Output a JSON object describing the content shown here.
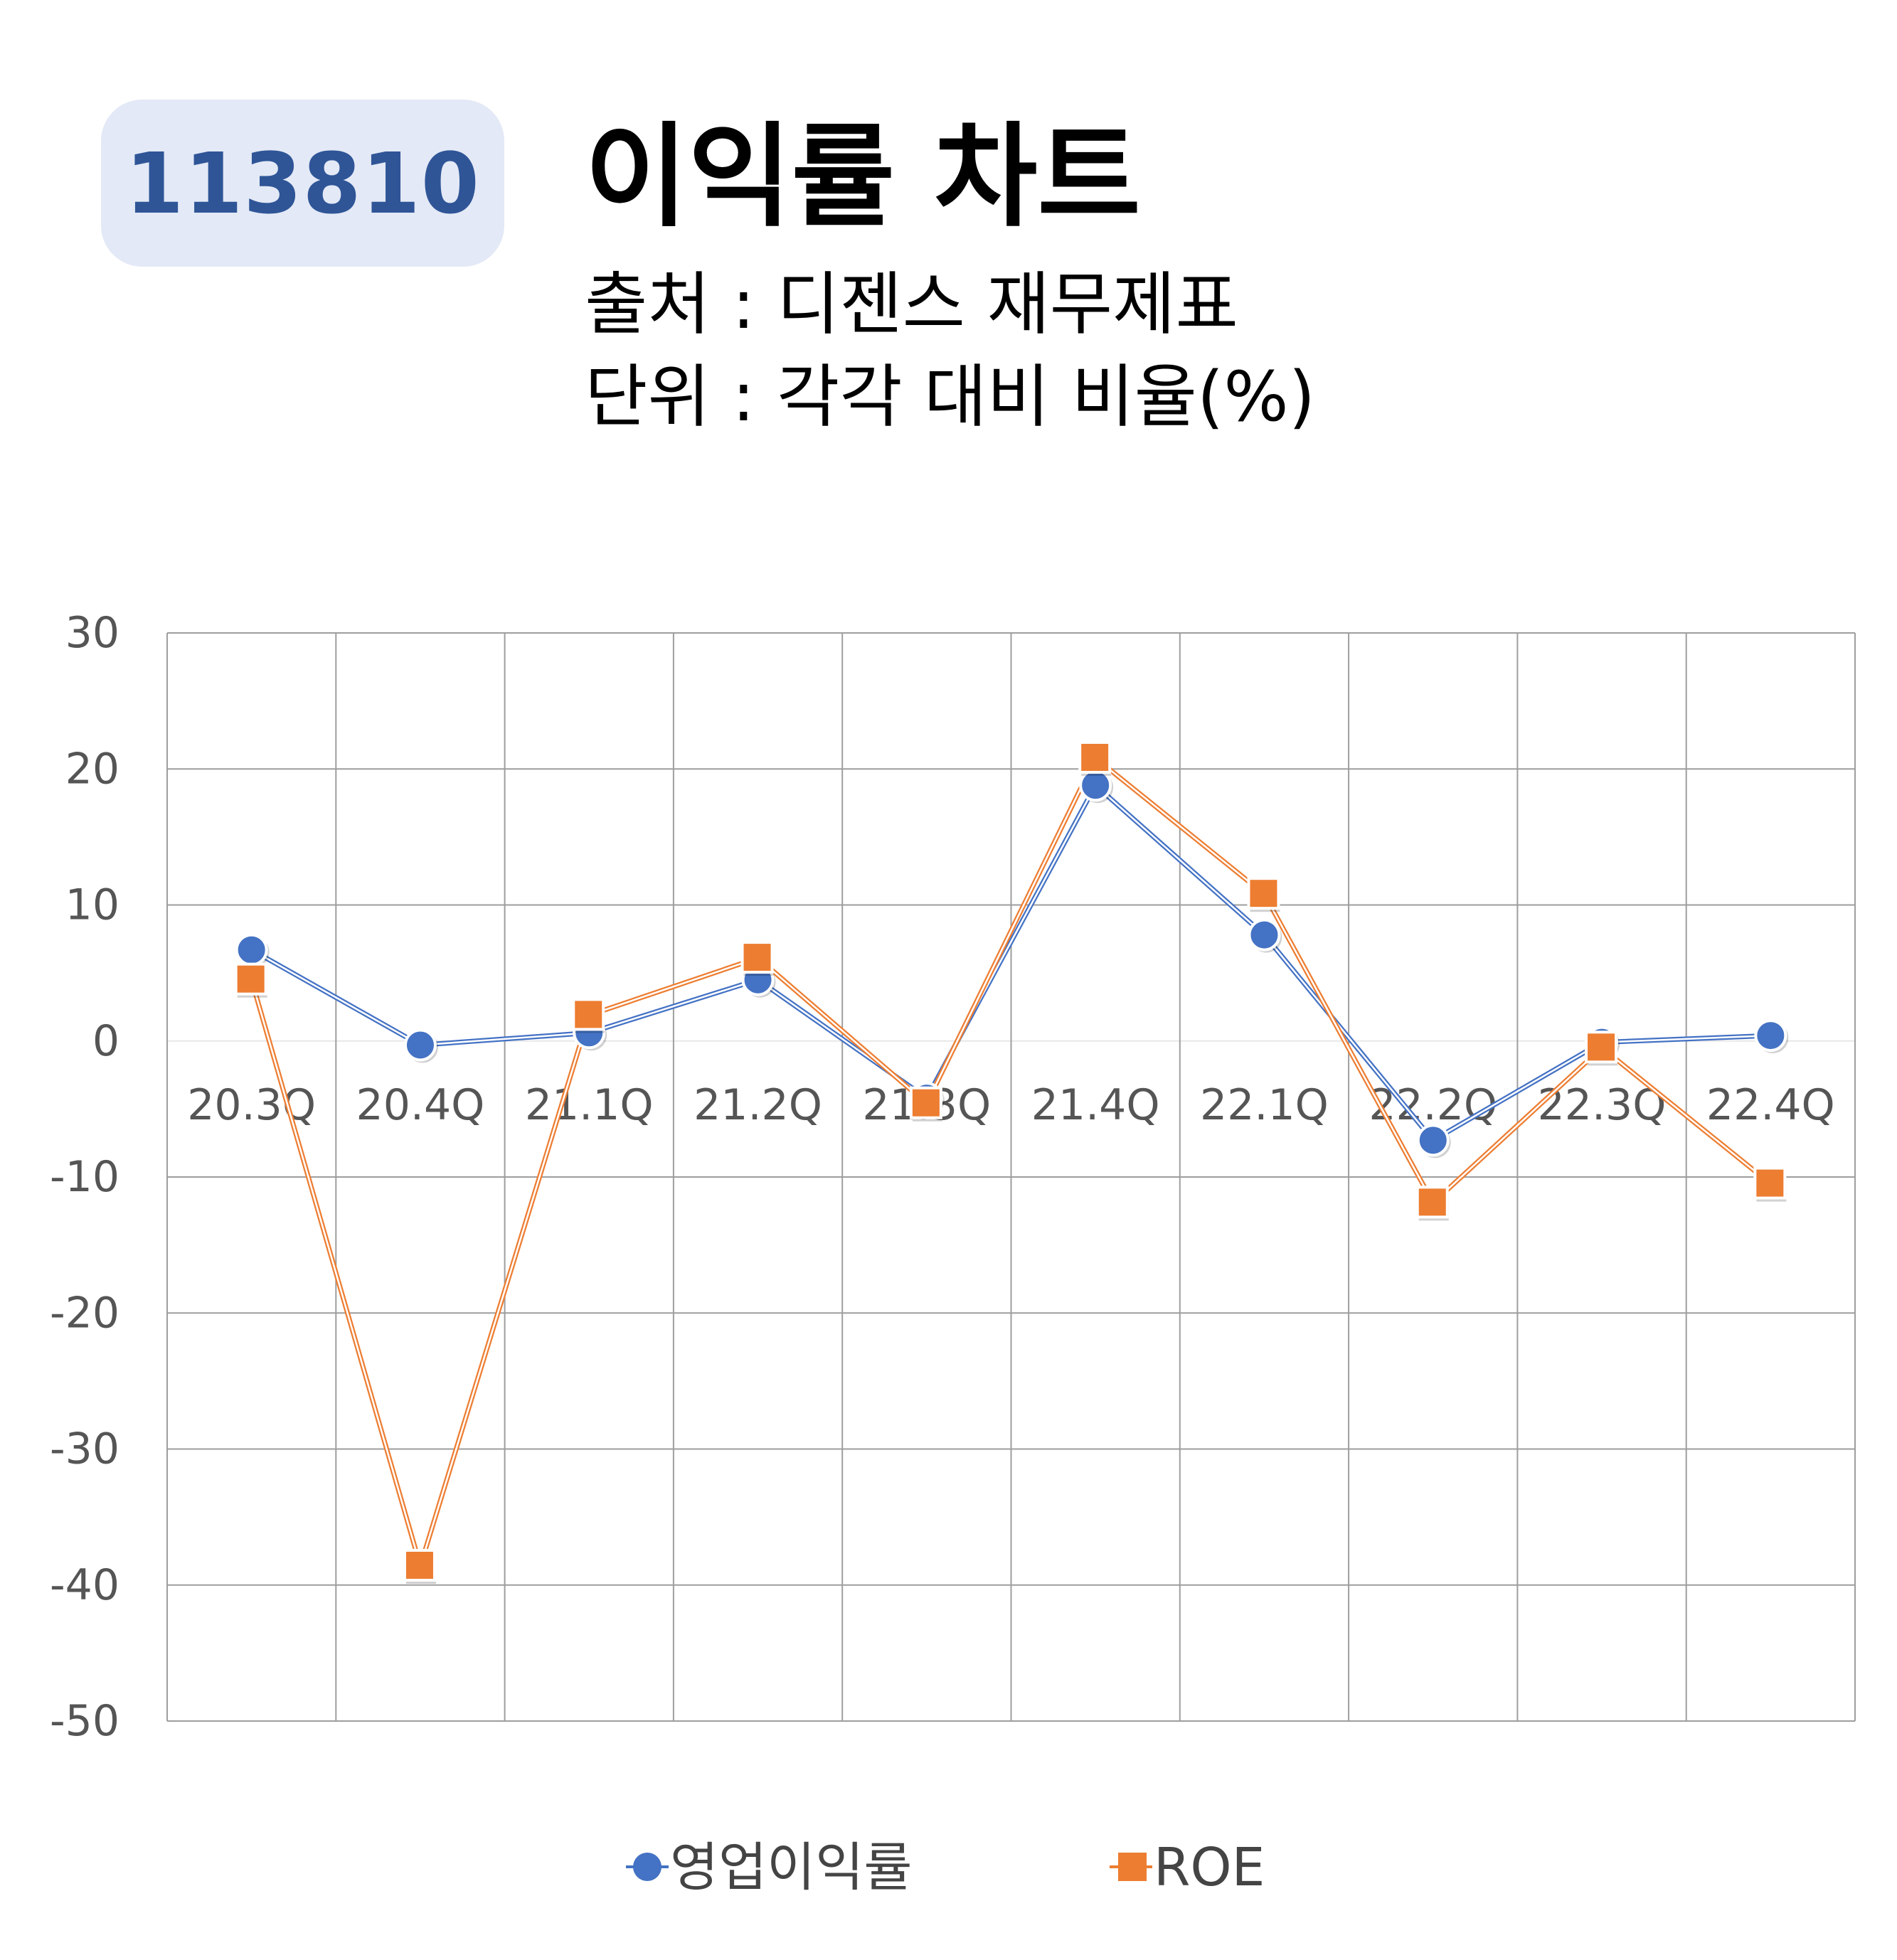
{
  "header": {
    "code": "113810",
    "title": "이익률 차트",
    "source_line": "출처 : 디젠스 재무제표",
    "unit_line": "단위 : 각각 대비 비율(%)"
  },
  "colors": {
    "badge_bg": "#e3e9f6",
    "badge_text": "#2f5597",
    "series_op": "#4472c4",
    "series_roe": "#ed7d31",
    "grid": "#9e9e9e"
  },
  "chart_data": {
    "type": "line",
    "title": "",
    "xlabel": "",
    "ylabel": "",
    "categories": [
      "20.3Q",
      "20.4Q",
      "21.1Q",
      "21.2Q",
      "21.3Q",
      "21.4Q",
      "22.1Q",
      "22.2Q",
      "22.3Q",
      "22.4Q"
    ],
    "ylim": [
      -50,
      30
    ],
    "yticks": [
      30,
      20,
      10,
      0,
      -10,
      -20,
      -30,
      -40,
      -50
    ],
    "grid": true,
    "legend_position": "bottom",
    "series": [
      {
        "name": "영업이익률",
        "marker": "circle",
        "color": "#4472c4",
        "values": [
          6.7,
          -0.3,
          0.6,
          4.5,
          -4.2,
          18.8,
          7.8,
          -7.3,
          -0.1,
          0.4
        ]
      },
      {
        "name": "ROE",
        "marker": "square",
        "color": "#ed7d31",
        "values": [
          4.5,
          -38.6,
          1.9,
          6.1,
          -4.6,
          20.8,
          10.8,
          -11.9,
          -0.5,
          -10.5
        ]
      }
    ]
  }
}
